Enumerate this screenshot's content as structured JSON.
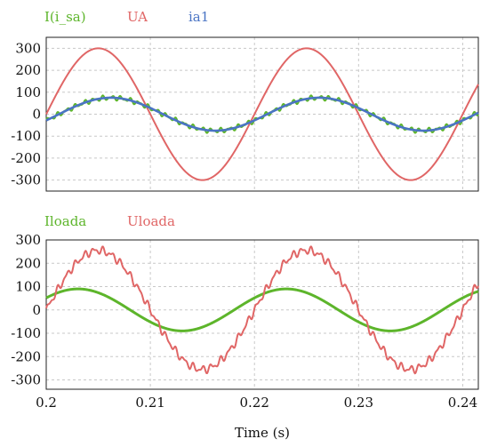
{
  "chart_data": [
    {
      "type": "line",
      "ylim": [
        -350,
        350
      ],
      "xlim": [
        0.2,
        0.2415
      ],
      "yticks": [
        "300",
        "200",
        "100",
        "0",
        "-100",
        "-200",
        "-300"
      ],
      "ytick_values": [
        300,
        200,
        100,
        0,
        -100,
        -200,
        -300
      ],
      "grid": true,
      "legend_position": "top-left",
      "series": [
        {
          "name": "I(i_sa)",
          "color": "#5db52b",
          "amplitude": 75,
          "freq_hz": 50,
          "phase_deg": 22,
          "ripple": 8,
          "offset": 0
        },
        {
          "name": "UA",
          "color": "#e06666",
          "amplitude": 300,
          "freq_hz": 50,
          "phase_deg": 0,
          "ripple": 0,
          "offset": 0
        },
        {
          "name": "ia1",
          "color": "#4a74c4",
          "amplitude": 75,
          "freq_hz": 50,
          "phase_deg": 22,
          "ripple": 0,
          "offset": 0
        }
      ]
    },
    {
      "type": "line",
      "ylim": [
        -340,
        300
      ],
      "xlim": [
        0.2,
        0.2415
      ],
      "yticks": [
        "300",
        "200",
        "100",
        "0",
        "-100",
        "-200",
        "-300"
      ],
      "ytick_values": [
        300,
        200,
        100,
        0,
        -100,
        -200,
        -300
      ],
      "grid": true,
      "legend_position": "top-left",
      "series": [
        {
          "name": "Iloada",
          "color": "#5db52b",
          "amplitude": 90,
          "freq_hz": 50,
          "phase_deg": -35,
          "ripple": 0,
          "offset": 0
        },
        {
          "name": "Uloada",
          "color": "#e06666",
          "amplitude": 255,
          "freq_hz": 50,
          "phase_deg": 0,
          "ripple": 12,
          "offset": 0
        }
      ]
    }
  ],
  "x_axis": {
    "ticks": [
      "0.2",
      "0.21",
      "0.22",
      "0.23",
      "0.24"
    ],
    "tick_values": [
      0.2,
      0.21,
      0.22,
      0.23,
      0.24
    ],
    "label": "Time (s)"
  }
}
